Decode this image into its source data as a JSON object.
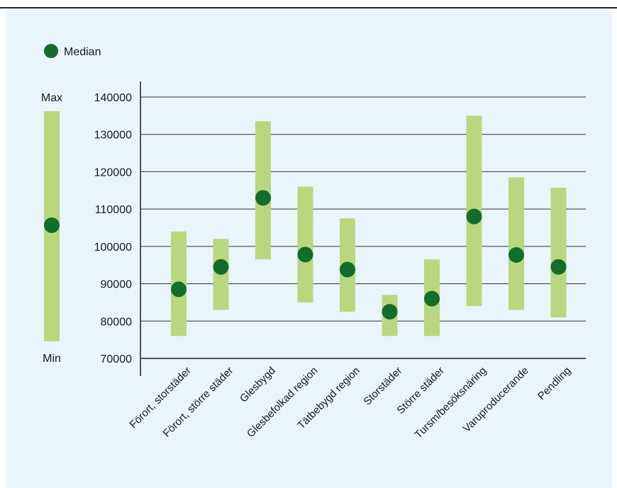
{
  "chart_data": {
    "type": "range",
    "legend": {
      "label": "Median",
      "position": "top-left"
    },
    "key": {
      "max_label": "Max",
      "min_label": "Min"
    },
    "ylim": [
      70000,
      140000
    ],
    "yticks": [
      70000,
      80000,
      90000,
      100000,
      110000,
      120000,
      130000,
      140000
    ],
    "grid": true,
    "categories": [
      "Förort, storstäder",
      "Förort, större städer",
      "Glesbygd",
      "Glesbefolkad region",
      "Tätbebygd region",
      "Storstäder",
      "Större städer",
      "Tursm/besöksnäring",
      "Varuproducerande",
      "Pendling"
    ],
    "series": [
      {
        "name": "Min",
        "values": [
          76000,
          83000,
          96500,
          85000,
          82500,
          76000,
          76000,
          84000,
          83000,
          81000
        ]
      },
      {
        "name": "Max",
        "values": [
          104000,
          102000,
          133500,
          116000,
          107500,
          87000,
          96500,
          135000,
          118500,
          115700
        ]
      },
      {
        "name": "Median",
        "values": [
          88500,
          94500,
          113000,
          97800,
          93800,
          82500,
          86000,
          108000,
          97700,
          94500
        ]
      }
    ]
  },
  "colors": {
    "range_bar": "#b9d77f",
    "median_dot": "#146c2d",
    "background": "#eaf4fb",
    "axis": "#222222"
  }
}
